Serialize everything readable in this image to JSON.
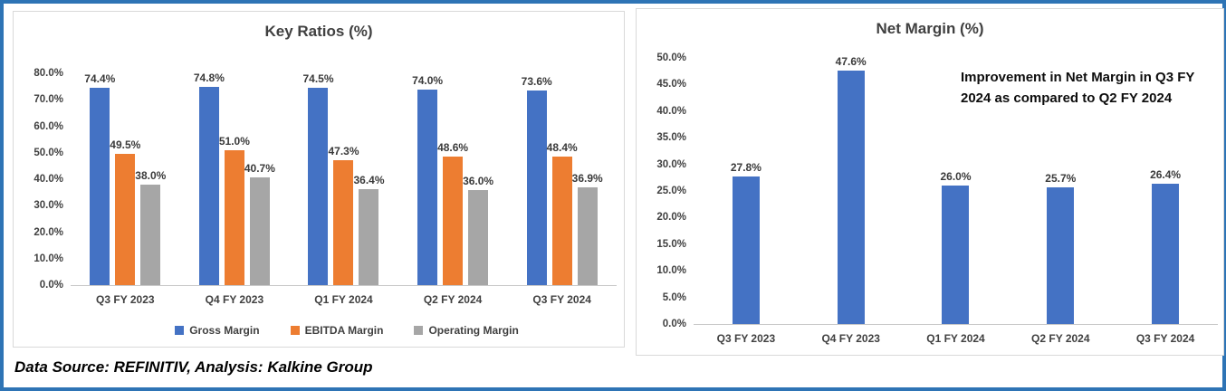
{
  "chart_data": [
    {
      "type": "bar",
      "title": "Key Ratios (%)",
      "categories": [
        "Q3 FY 2023",
        "Q4 FY 2023",
        "Q1 FY 2024",
        "Q2 FY 2024",
        "Q3 FY 2024"
      ],
      "series": [
        {
          "name": "Gross Margin",
          "color": "#4472C4",
          "values": [
            74.4,
            74.8,
            74.5,
            74.0,
            73.6
          ],
          "labels": [
            "74.4%",
            "74.8%",
            "74.5%",
            "74.0%",
            "73.6%"
          ]
        },
        {
          "name": "EBITDA Margin",
          "color": "#ED7D31",
          "values": [
            49.5,
            51.0,
            47.3,
            48.6,
            48.4
          ],
          "labels": [
            "49.5%",
            "51.0%",
            "47.3%",
            "48.6%",
            "48.4%"
          ]
        },
        {
          "name": "Operating Margin",
          "color": "#A6A6A6",
          "values": [
            38.0,
            40.7,
            36.4,
            36.0,
            36.9
          ],
          "labels": [
            "38.0%",
            "40.7%",
            "36.4%",
            "36.0%",
            "36.9%"
          ]
        }
      ],
      "ylim": [
        0,
        80
      ],
      "ytick_step": 10,
      "ytick_labels": [
        "0.0%",
        "10.0%",
        "20.0%",
        "30.0%",
        "40.0%",
        "50.0%",
        "60.0%",
        "70.0%",
        "80.0%"
      ],
      "grid": false,
      "legend_position": "bottom"
    },
    {
      "type": "bar",
      "title": "Net Margin (%)",
      "categories": [
        "Q3 FY 2023",
        "Q4 FY 2023",
        "Q1 FY 2024",
        "Q2 FY 2024",
        "Q3 FY 2024"
      ],
      "series": [
        {
          "name": "Net Margin",
          "color": "#4472C4",
          "values": [
            27.8,
            47.6,
            26.0,
            25.7,
            26.4
          ],
          "labels": [
            "27.8%",
            "47.6%",
            "26.0%",
            "25.7%",
            "26.4%"
          ]
        }
      ],
      "ylim": [
        0,
        50
      ],
      "ytick_step": 5,
      "ytick_labels": [
        "0.0%",
        "5.0%",
        "10.0%",
        "15.0%",
        "20.0%",
        "25.0%",
        "30.0%",
        "35.0%",
        "40.0%",
        "45.0%",
        "50.0%"
      ],
      "grid": false,
      "legend_position": "none",
      "annotation": "Improvement in Net Margin in Q3 FY 2024 as compared to Q2 FY 2024"
    }
  ],
  "footer": {
    "text": "Data Source: REFINITIV, Analysis: Kalkine Group"
  },
  "colors": {
    "gross_margin": "#4472C4",
    "ebitda_margin": "#ED7D31",
    "operating_margin": "#A6A6A6",
    "frame_blue": "#2E74B5"
  }
}
